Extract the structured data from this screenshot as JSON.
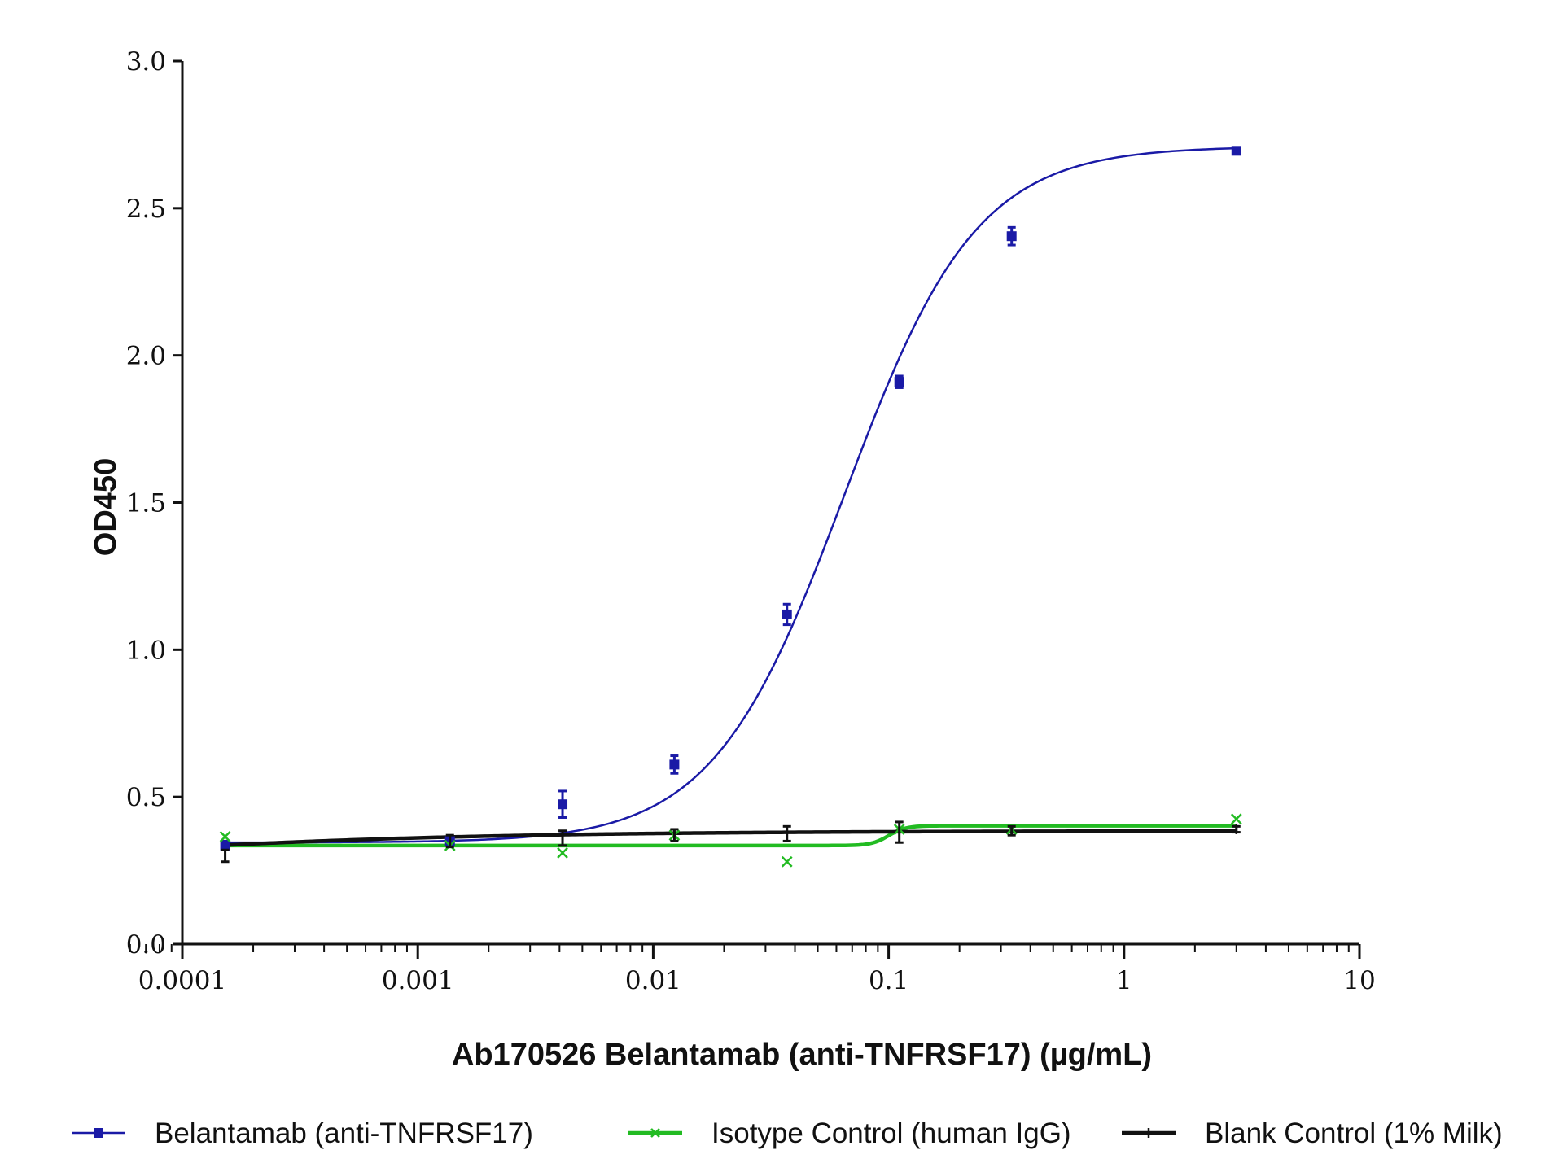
{
  "chart_data": {
    "type": "line",
    "title": "",
    "xlabel": "Ab170526 Belantamab (anti-TNFRSF17) (µg/mL)",
    "ylabel": "OD450",
    "x_scale": "log",
    "xlim": [
      0.0001,
      10
    ],
    "ylim": [
      0,
      3.0
    ],
    "x_ticks": [
      {
        "value": 0.0001,
        "label": "0.0001"
      },
      {
        "value": 0.001,
        "label": "0.001"
      },
      {
        "value": 0.01,
        "label": "0.01"
      },
      {
        "value": 0.1,
        "label": "0.1"
      },
      {
        "value": 1,
        "label": "1"
      },
      {
        "value": 10,
        "label": "10"
      }
    ],
    "y_ticks": [
      {
        "value": 0,
        "label": "0.0"
      },
      {
        "value": 0.5,
        "label": "0.5"
      },
      {
        "value": 1.0,
        "label": "1.0"
      },
      {
        "value": 1.5,
        "label": "1.5"
      },
      {
        "value": 2.0,
        "label": "2.0"
      },
      {
        "value": 2.5,
        "label": "2.5"
      },
      {
        "value": 3.0,
        "label": "3.0"
      }
    ],
    "grid": false,
    "legend_position": "bottom",
    "series": [
      {
        "name": "Belantamab (anti-TNFRSF17)",
        "color": "#1a1aa6",
        "marker": "square",
        "x": [
          0.000152,
          0.00137,
          0.00412,
          0.0123,
          0.037,
          0.111,
          0.333,
          3.0
        ],
        "y": [
          0.335,
          0.35,
          0.475,
          0.61,
          1.12,
          1.91,
          2.405,
          2.695
        ],
        "error": [
          0.015,
          0.01,
          0.045,
          0.03,
          0.035,
          0.02,
          0.03,
          0.005
        ],
        "fit": {
          "bottom": 0.345,
          "top": 2.71,
          "ec50": 0.065,
          "hill": 1.55
        }
      },
      {
        "name": "Isotype Control (human IgG)",
        "color": "#22bb22",
        "marker": "x",
        "x": [
          0.000152,
          0.00137,
          0.00412,
          0.0123,
          0.037,
          0.111,
          0.333,
          3.0
        ],
        "y": [
          0.365,
          0.335,
          0.31,
          0.37,
          0.28,
          0.39,
          0.39,
          0.425
        ],
        "fit": {
          "bottom": 0.335,
          "top": 0.402,
          "ec50": 0.1,
          "hill": 12
        }
      },
      {
        "name": "Blank Control (1% Milk)",
        "color": "#111111",
        "marker": "plus",
        "x": [
          0.000152,
          0.00137,
          0.00412,
          0.0123,
          0.037,
          0.111,
          0.333,
          3.0
        ],
        "y": [
          0.3,
          0.35,
          0.36,
          0.37,
          0.375,
          0.38,
          0.385,
          0.39
        ],
        "error": [
          0.02,
          0.02,
          0.025,
          0.02,
          0.025,
          0.035,
          0.015,
          0.01
        ],
        "fit": {
          "bottom": 0.17,
          "top": 0.385,
          "ec50": 1e-05,
          "hill": 0.45
        }
      }
    ]
  }
}
